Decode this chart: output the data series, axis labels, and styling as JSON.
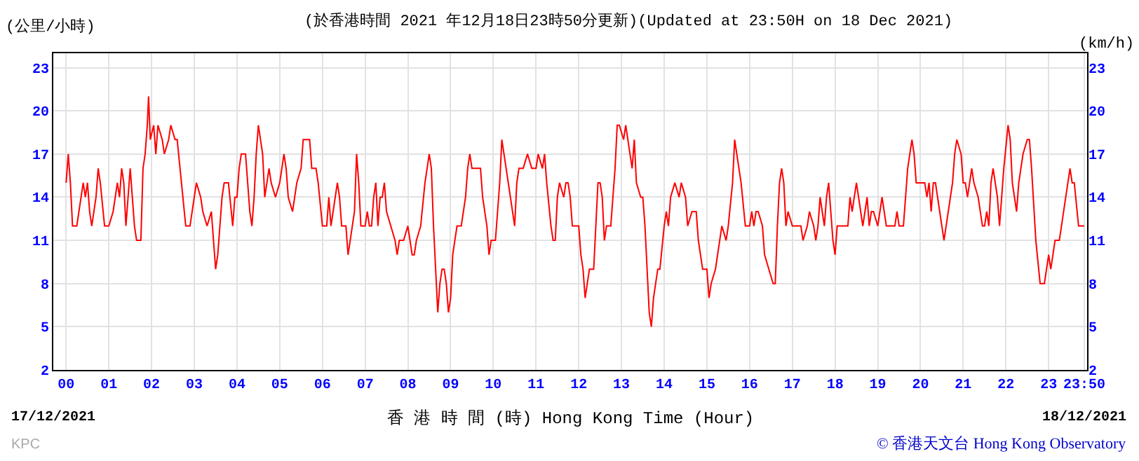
{
  "chart_data": {
    "type": "line",
    "title": "(於香港時間 2021 年12月18日23時50分更新)(Updated at 23:50H on 18 Dec 2021)",
    "xlabel": "香 港 時 間 (時) Hong Kong Time (Hour)",
    "ylabel": "(公里/小時)",
    "y2label": "(km/h)",
    "annotations": [
      "17/12/2021",
      "18/12/2021",
      "KPC",
      "© 香港天文台 Hong Kong Observatory"
    ],
    "x": [
      0.0,
      0.05,
      0.1,
      0.15,
      0.25,
      0.3,
      0.4,
      0.45,
      0.5,
      0.55,
      0.6,
      0.7,
      0.75,
      0.8,
      0.9,
      1.0,
      1.1,
      1.15,
      1.2,
      1.25,
      1.3,
      1.35,
      1.4,
      1.45,
      1.5,
      1.55,
      1.6,
      1.65,
      1.75,
      1.8,
      1.85,
      1.9,
      1.93,
      1.97,
      2.05,
      2.1,
      2.15,
      2.25,
      2.3,
      2.4,
      2.45,
      2.55,
      2.6,
      2.7,
      2.8,
      2.9,
      3.0,
      3.05,
      3.15,
      3.2,
      3.3,
      3.4,
      3.5,
      3.55,
      3.6,
      3.65,
      3.7,
      3.8,
      3.9,
      3.95,
      4.0,
      4.05,
      4.1,
      4.2,
      4.3,
      4.35,
      4.4,
      4.45,
      4.5,
      4.6,
      4.65,
      4.75,
      4.8,
      4.9,
      5.0,
      5.05,
      5.1,
      5.15,
      5.2,
      5.3,
      5.4,
      5.5,
      5.55,
      5.7,
      5.75,
      5.85,
      5.9,
      6.0,
      6.1,
      6.15,
      6.2,
      6.3,
      6.35,
      6.4,
      6.45,
      6.55,
      6.6,
      6.65,
      6.75,
      6.8,
      6.85,
      6.9,
      7.0,
      7.05,
      7.1,
      7.15,
      7.2,
      7.25,
      7.3,
      7.35,
      7.4,
      7.45,
      7.5,
      7.6,
      7.7,
      7.75,
      7.8,
      7.9,
      8.0,
      8.05,
      8.1,
      8.15,
      8.2,
      8.3,
      8.4,
      8.45,
      8.5,
      8.55,
      8.6,
      8.65,
      8.7,
      8.75,
      8.8,
      8.85,
      8.9,
      8.95,
      9.0,
      9.05,
      9.1,
      9.15,
      9.25,
      9.3,
      9.35,
      9.4,
      9.45,
      9.5,
      9.6,
      9.7,
      9.75,
      9.85,
      9.9,
      9.95,
      10.05,
      10.1,
      10.15,
      10.2,
      10.25,
      10.3,
      10.4,
      10.5,
      10.55,
      10.6,
      10.7,
      10.8,
      10.9,
      11.0,
      11.05,
      11.15,
      11.2,
      11.25,
      11.35,
      11.4,
      11.45,
      11.5,
      11.55,
      11.65,
      11.7,
      11.75,
      11.8,
      11.85,
      12.0,
      12.05,
      12.1,
      12.15,
      12.2,
      12.25,
      12.35,
      12.4,
      12.45,
      12.5,
      12.55,
      12.6,
      12.65,
      12.75,
      12.8,
      12.85,
      12.9,
      12.95,
      13.05,
      13.1,
      13.15,
      13.2,
      13.25,
      13.3,
      13.35,
      13.45,
      13.5,
      13.55,
      13.6,
      13.65,
      13.7,
      13.75,
      13.8,
      13.85,
      13.9,
      14.0,
      14.05,
      14.1,
      14.15,
      14.25,
      14.35,
      14.4,
      14.5,
      14.55,
      14.65,
      14.75,
      14.8,
      14.9,
      15.0,
      15.05,
      15.1,
      15.2,
      15.3,
      15.35,
      15.45,
      15.5,
      15.6,
      15.65,
      15.7,
      15.75,
      15.8,
      15.9,
      16.0,
      16.05,
      16.1,
      16.15,
      16.2,
      16.3,
      16.35,
      16.45,
      16.55,
      16.6,
      16.65,
      16.7,
      16.75,
      16.8,
      16.85,
      16.9,
      17.0,
      17.1,
      17.2,
      17.25,
      17.35,
      17.4,
      17.5,
      17.55,
      17.6,
      17.65,
      17.7,
      17.75,
      17.8,
      17.85,
      17.9,
      17.95,
      18.0,
      18.05,
      18.15,
      18.3,
      18.35,
      18.4,
      18.45,
      18.5,
      18.55,
      18.6,
      18.65,
      18.7,
      18.75,
      18.8,
      18.85,
      18.9,
      19.0,
      19.05,
      19.1,
      19.15,
      19.2,
      19.3,
      19.4,
      19.45,
      19.5,
      19.6,
      19.65,
      19.7,
      19.75,
      19.8,
      19.85,
      19.9,
      20.0,
      20.1,
      20.15,
      20.2,
      20.25,
      20.3,
      20.35,
      20.45,
      20.5,
      20.55,
      20.6,
      20.65,
      20.7,
      20.75,
      20.8,
      20.85,
      20.95,
      21.0,
      21.05,
      21.1,
      21.15,
      21.2,
      21.25,
      21.35,
      21.45,
      21.5,
      21.55,
      21.6,
      21.65,
      21.7,
      21.75,
      21.8,
      21.85,
      21.9,
      21.95,
      22.05,
      22.1,
      22.15,
      22.25,
      22.3,
      22.35,
      22.4,
      22.5,
      22.55,
      22.6,
      22.7,
      22.8,
      22.9,
      22.95,
      23.0,
      23.05,
      23.1,
      23.15,
      23.25,
      23.3,
      23.4,
      23.5,
      23.55,
      23.6,
      23.7,
      23.833
    ],
    "series": [
      {
        "color": "#ff0000",
        "values": [
          15,
          17,
          15,
          12,
          12,
          13,
          15,
          14,
          15,
          13,
          12,
          14,
          16,
          15,
          12,
          12,
          13,
          14,
          15,
          14,
          16,
          15,
          12,
          14,
          16,
          14,
          12,
          11,
          11,
          16,
          17,
          19,
          21,
          18,
          19,
          17,
          19,
          18,
          17,
          18,
          19,
          18,
          18,
          15,
          12,
          12,
          14,
          15,
          14,
          13,
          12,
          13,
          9,
          10,
          12,
          14,
          15,
          15,
          12,
          14,
          14,
          16,
          17,
          17,
          13,
          12,
          14,
          17,
          19,
          17,
          14,
          16,
          15,
          14,
          15,
          16,
          17,
          16,
          14,
          13,
          15,
          16,
          18,
          18,
          16,
          16,
          15,
          12,
          12,
          14,
          12,
          14,
          15,
          14,
          12,
          12,
          10,
          11,
          13,
          17,
          15,
          12,
          12,
          13,
          12,
          12,
          14,
          15,
          12,
          14,
          14,
          15,
          13,
          12,
          11,
          10,
          11,
          11,
          12,
          11,
          10,
          10,
          11,
          12,
          15,
          16,
          17,
          16,
          12,
          9,
          6,
          8,
          9,
          9,
          8,
          6,
          7,
          10,
          11,
          12,
          12,
          13,
          14,
          16,
          17,
          16,
          16,
          16,
          14,
          12,
          10,
          11,
          11,
          13,
          15,
          18,
          17,
          16,
          14,
          12,
          15,
          16,
          16,
          17,
          16,
          16,
          17,
          16,
          17,
          15,
          12,
          11,
          11,
          14,
          15,
          14,
          15,
          15,
          14,
          12,
          12,
          10,
          9,
          7,
          8,
          9,
          9,
          12,
          15,
          15,
          14,
          11,
          12,
          12,
          14,
          16,
          19,
          19,
          18,
          19,
          18,
          17,
          16,
          18,
          15,
          14,
          14,
          12,
          9,
          6,
          5,
          7,
          8,
          9,
          9,
          12,
          13,
          12,
          14,
          15,
          14,
          15,
          14,
          12,
          13,
          13,
          11,
          9,
          9,
          7,
          8,
          9,
          11,
          12,
          11,
          12,
          15,
          18,
          17,
          16,
          15,
          12,
          12,
          13,
          12,
          13,
          13,
          12,
          10,
          9,
          8,
          8,
          12,
          15,
          16,
          15,
          12,
          13,
          12,
          12,
          12,
          11,
          12,
          13,
          12,
          11,
          12,
          14,
          13,
          12,
          14,
          15,
          13,
          11,
          10,
          12,
          12,
          12,
          14,
          13,
          14,
          15,
          14,
          13,
          12,
          13,
          14,
          12,
          13,
          13,
          12,
          13,
          14,
          13,
          12,
          12,
          12,
          13,
          12,
          12,
          14,
          16,
          17,
          18,
          17,
          15,
          15,
          15,
          14,
          15,
          13,
          15,
          15,
          13,
          12,
          11,
          12,
          13,
          14,
          15,
          17,
          18,
          17,
          15,
          15,
          14,
          15,
          16,
          15,
          14,
          12,
          12,
          13,
          12,
          15,
          16,
          15,
          14,
          12,
          14,
          16,
          19,
          18,
          15,
          13,
          15,
          16,
          17,
          18,
          18,
          16,
          11,
          8,
          8,
          9,
          10,
          9,
          10,
          11,
          11,
          12,
          14,
          16,
          15,
          15,
          12,
          12
        ]
      }
    ],
    "xlim": [
      -0.3,
      23.9
    ],
    "xticks": [
      {
        "value": 0,
        "label": "00"
      },
      {
        "value": 1,
        "label": "01"
      },
      {
        "value": 2,
        "label": "02"
      },
      {
        "value": 3,
        "label": "03"
      },
      {
        "value": 4,
        "label": "04"
      },
      {
        "value": 5,
        "label": "05"
      },
      {
        "value": 6,
        "label": "06"
      },
      {
        "value": 7,
        "label": "07"
      },
      {
        "value": 8,
        "label": "08"
      },
      {
        "value": 9,
        "label": "09"
      },
      {
        "value": 10,
        "label": "10"
      },
      {
        "value": 11,
        "label": "11"
      },
      {
        "value": 12,
        "label": "12"
      },
      {
        "value": 13,
        "label": "13"
      },
      {
        "value": 14,
        "label": "14"
      },
      {
        "value": 15,
        "label": "15"
      },
      {
        "value": 16,
        "label": "16"
      },
      {
        "value": 17,
        "label": "17"
      },
      {
        "value": 18,
        "label": "18"
      },
      {
        "value": 19,
        "label": "19"
      },
      {
        "value": 20,
        "label": "20"
      },
      {
        "value": 21,
        "label": "21"
      },
      {
        "value": 22,
        "label": "22"
      },
      {
        "value": 23,
        "label": "23"
      },
      {
        "value": 23.833,
        "label": "23:50"
      }
    ],
    "ylim": [
      2,
      24
    ],
    "yticks": [
      2,
      5,
      8,
      11,
      14,
      17,
      20,
      23
    ],
    "y2lim": [
      2,
      24
    ],
    "y2ticks": [
      2,
      5,
      8,
      11,
      14,
      17,
      20,
      23
    ],
    "grid": true
  }
}
